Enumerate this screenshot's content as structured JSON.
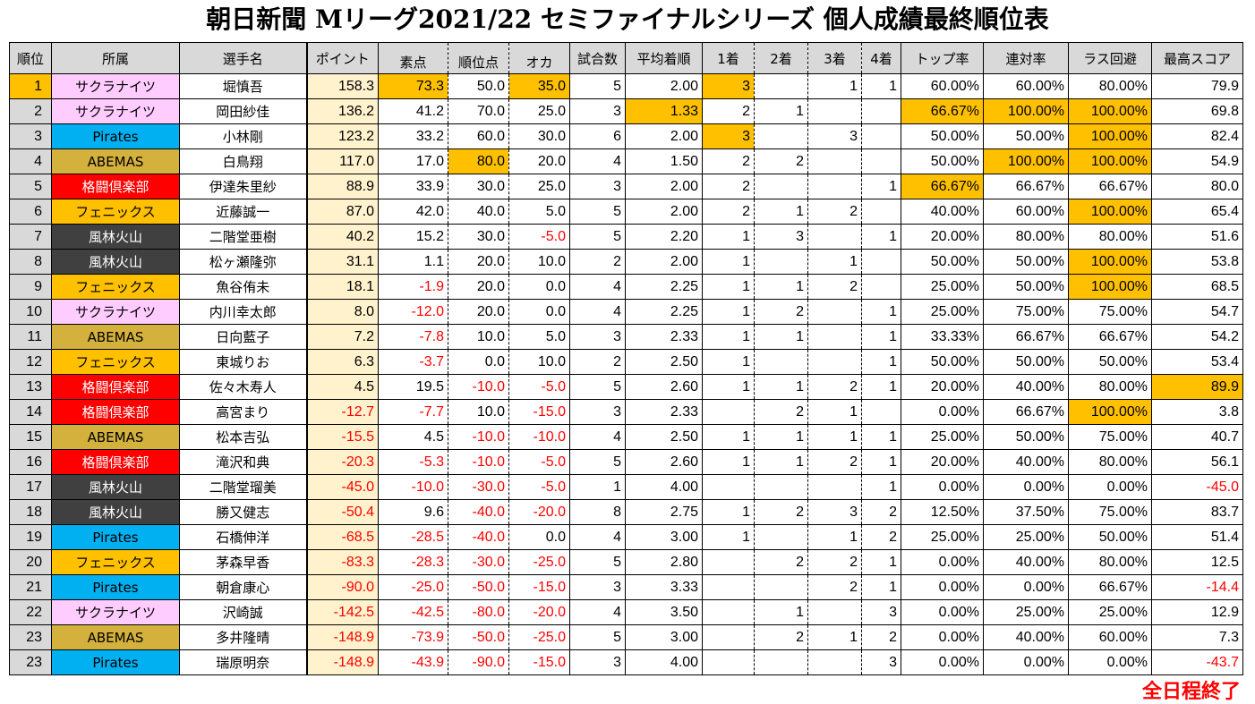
{
  "title": "朝日新聞 Mリーグ2021/22 セミファイナルシリーズ 個人成績最終順位表",
  "footer_note": "全日程終了",
  "colors": {
    "highlight": "#ffc000",
    "point_bg": "#fff2cc",
    "header_bg": "#d9d9d9",
    "negative": "#ff0000",
    "teams": {
      "サクラナイツ": {
        "bg": "#ffccff",
        "fg": "#000000"
      },
      "Pirates": {
        "bg": "#00b0f0",
        "fg": "#000000"
      },
      "ABEMAS": {
        "bg": "#d4b13c",
        "fg": "#000000"
      },
      "格闘倶楽部": {
        "bg": "#ff0000",
        "fg": "#ffffff"
      },
      "フェニックス": {
        "bg": "#ffc000",
        "fg": "#000000"
      },
      "風林火山": {
        "bg": "#404040",
        "fg": "#ffffff"
      }
    }
  },
  "headers": {
    "rank": "順位",
    "team": "所属",
    "player": "選手名",
    "points": "ポイント",
    "raw": "素点",
    "placement": "順位点",
    "oka": "オカ",
    "games": "試合数",
    "avg_place": "平均着順",
    "first": "1着",
    "second": "2着",
    "third": "3着",
    "fourth": "4着",
    "top_rate": "トップ率",
    "rentai_rate": "連対率",
    "last_avoid": "ラス回避",
    "high_score": "最高スコア"
  },
  "rows": [
    {
      "rank": "1",
      "team": "サクラナイツ",
      "player": "堀慎吾",
      "points": "158.3",
      "raw": "73.3",
      "placement": "50.0",
      "oka": "35.0",
      "games": "5",
      "avg": "2.00",
      "p1": "3",
      "p2": "",
      "p3": "1",
      "p4": "1",
      "top": "60.00%",
      "rentai": "60.00%",
      "avoid": "80.00%",
      "high": "79.9",
      "hl": [
        "rank",
        "raw",
        "oka",
        "p1"
      ]
    },
    {
      "rank": "2",
      "team": "サクラナイツ",
      "player": "岡田紗佳",
      "points": "136.2",
      "raw": "41.2",
      "placement": "70.0",
      "oka": "25.0",
      "games": "3",
      "avg": "1.33",
      "p1": "2",
      "p2": "1",
      "p3": "",
      "p4": "",
      "top": "66.67%",
      "rentai": "100.00%",
      "avoid": "100.00%",
      "high": "69.8",
      "hl": [
        "avg",
        "top",
        "rentai",
        "avoid"
      ]
    },
    {
      "rank": "3",
      "team": "Pirates",
      "player": "小林剛",
      "points": "123.2",
      "raw": "33.2",
      "placement": "60.0",
      "oka": "30.0",
      "games": "6",
      "avg": "2.00",
      "p1": "3",
      "p2": "",
      "p3": "3",
      "p4": "",
      "top": "50.00%",
      "rentai": "50.00%",
      "avoid": "100.00%",
      "high": "82.4",
      "hl": [
        "p1",
        "avoid"
      ]
    },
    {
      "rank": "4",
      "team": "ABEMAS",
      "player": "白鳥翔",
      "points": "117.0",
      "raw": "17.0",
      "placement": "80.0",
      "oka": "20.0",
      "games": "4",
      "avg": "1.50",
      "p1": "2",
      "p2": "2",
      "p3": "",
      "p4": "",
      "top": "50.00%",
      "rentai": "100.00%",
      "avoid": "100.00%",
      "high": "54.9",
      "hl": [
        "placement",
        "rentai",
        "avoid"
      ]
    },
    {
      "rank": "5",
      "team": "格闘倶楽部",
      "player": "伊達朱里紗",
      "points": "88.9",
      "raw": "33.9",
      "placement": "30.0",
      "oka": "25.0",
      "games": "3",
      "avg": "2.00",
      "p1": "2",
      "p2": "",
      "p3": "",
      "p4": "1",
      "top": "66.67%",
      "rentai": "66.67%",
      "avoid": "66.67%",
      "high": "80.0",
      "hl": [
        "top"
      ]
    },
    {
      "rank": "6",
      "team": "フェニックス",
      "player": "近藤誠一",
      "points": "87.0",
      "raw": "42.0",
      "placement": "40.0",
      "oka": "5.0",
      "games": "5",
      "avg": "2.00",
      "p1": "2",
      "p2": "1",
      "p3": "2",
      "p4": "",
      "top": "40.00%",
      "rentai": "60.00%",
      "avoid": "100.00%",
      "high": "65.4",
      "hl": [
        "avoid"
      ]
    },
    {
      "rank": "7",
      "team": "風林火山",
      "player": "二階堂亜樹",
      "points": "40.2",
      "raw": "15.2",
      "placement": "30.0",
      "oka": "-5.0",
      "games": "5",
      "avg": "2.20",
      "p1": "1",
      "p2": "3",
      "p3": "",
      "p4": "1",
      "top": "20.00%",
      "rentai": "80.00%",
      "avoid": "80.00%",
      "high": "51.6",
      "hl": []
    },
    {
      "rank": "8",
      "team": "風林火山",
      "player": "松ヶ瀬隆弥",
      "points": "31.1",
      "raw": "1.1",
      "placement": "20.0",
      "oka": "10.0",
      "games": "2",
      "avg": "2.00",
      "p1": "1",
      "p2": "",
      "p3": "1",
      "p4": "",
      "top": "50.00%",
      "rentai": "50.00%",
      "avoid": "100.00%",
      "high": "53.8",
      "hl": [
        "avoid"
      ]
    },
    {
      "rank": "9",
      "team": "フェニックス",
      "player": "魚谷侑未",
      "points": "18.1",
      "raw": "-1.9",
      "placement": "20.0",
      "oka": "0.0",
      "games": "4",
      "avg": "2.25",
      "p1": "1",
      "p2": "1",
      "p3": "2",
      "p4": "",
      "top": "25.00%",
      "rentai": "50.00%",
      "avoid": "100.00%",
      "high": "68.5",
      "hl": [
        "avoid"
      ]
    },
    {
      "rank": "10",
      "team": "サクラナイツ",
      "player": "内川幸太郎",
      "points": "8.0",
      "raw": "-12.0",
      "placement": "20.0",
      "oka": "0.0",
      "games": "4",
      "avg": "2.25",
      "p1": "1",
      "p2": "2",
      "p3": "",
      "p4": "1",
      "top": "25.00%",
      "rentai": "75.00%",
      "avoid": "75.00%",
      "high": "54.7",
      "hl": []
    },
    {
      "rank": "11",
      "team": "ABEMAS",
      "player": "日向藍子",
      "points": "7.2",
      "raw": "-7.8",
      "placement": "10.0",
      "oka": "5.0",
      "games": "3",
      "avg": "2.33",
      "p1": "1",
      "p2": "1",
      "p3": "",
      "p4": "1",
      "top": "33.33%",
      "rentai": "66.67%",
      "avoid": "66.67%",
      "high": "54.2",
      "hl": []
    },
    {
      "rank": "12",
      "team": "フェニックス",
      "player": "東城りお",
      "points": "6.3",
      "raw": "-3.7",
      "placement": "0.0",
      "oka": "10.0",
      "games": "2",
      "avg": "2.50",
      "p1": "1",
      "p2": "",
      "p3": "",
      "p4": "1",
      "top": "50.00%",
      "rentai": "50.00%",
      "avoid": "50.00%",
      "high": "53.4",
      "hl": []
    },
    {
      "rank": "13",
      "team": "格闘倶楽部",
      "player": "佐々木寿人",
      "points": "4.5",
      "raw": "19.5",
      "placement": "-10.0",
      "oka": "-5.0",
      "games": "5",
      "avg": "2.60",
      "p1": "1",
      "p2": "1",
      "p3": "2",
      "p4": "1",
      "top": "20.00%",
      "rentai": "40.00%",
      "avoid": "80.00%",
      "high": "89.9",
      "hl": [
        "high"
      ]
    },
    {
      "rank": "14",
      "team": "格闘倶楽部",
      "player": "高宮まり",
      "points": "-12.7",
      "raw": "-7.7",
      "placement": "10.0",
      "oka": "-15.0",
      "games": "3",
      "avg": "2.33",
      "p1": "",
      "p2": "2",
      "p3": "1",
      "p4": "",
      "top": "0.00%",
      "rentai": "66.67%",
      "avoid": "100.00%",
      "high": "3.8",
      "hl": [
        "avoid"
      ]
    },
    {
      "rank": "15",
      "team": "ABEMAS",
      "player": "松本吉弘",
      "points": "-15.5",
      "raw": "4.5",
      "placement": "-10.0",
      "oka": "-10.0",
      "games": "4",
      "avg": "2.50",
      "p1": "1",
      "p2": "1",
      "p3": "1",
      "p4": "1",
      "top": "25.00%",
      "rentai": "50.00%",
      "avoid": "75.00%",
      "high": "40.7",
      "hl": []
    },
    {
      "rank": "16",
      "team": "格闘倶楽部",
      "player": "滝沢和典",
      "points": "-20.3",
      "raw": "-5.3",
      "placement": "-10.0",
      "oka": "-5.0",
      "games": "5",
      "avg": "2.60",
      "p1": "1",
      "p2": "1",
      "p3": "2",
      "p4": "1",
      "top": "20.00%",
      "rentai": "40.00%",
      "avoid": "80.00%",
      "high": "56.1",
      "hl": []
    },
    {
      "rank": "17",
      "team": "風林火山",
      "player": "二階堂瑠美",
      "points": "-45.0",
      "raw": "-10.0",
      "placement": "-30.0",
      "oka": "-5.0",
      "games": "1",
      "avg": "4.00",
      "p1": "",
      "p2": "",
      "p3": "",
      "p4": "1",
      "top": "0.00%",
      "rentai": "0.00%",
      "avoid": "0.00%",
      "high": "-45.0",
      "hl": []
    },
    {
      "rank": "18",
      "team": "風林火山",
      "player": "勝又健志",
      "points": "-50.4",
      "raw": "9.6",
      "placement": "-40.0",
      "oka": "-20.0",
      "games": "8",
      "avg": "2.75",
      "p1": "1",
      "p2": "2",
      "p3": "3",
      "p4": "2",
      "top": "12.50%",
      "rentai": "37.50%",
      "avoid": "75.00%",
      "high": "83.7",
      "hl": []
    },
    {
      "rank": "19",
      "team": "Pirates",
      "player": "石橋伸洋",
      "points": "-68.5",
      "raw": "-28.5",
      "placement": "-40.0",
      "oka": "0.0",
      "games": "4",
      "avg": "3.00",
      "p1": "1",
      "p2": "",
      "p3": "1",
      "p4": "2",
      "top": "25.00%",
      "rentai": "25.00%",
      "avoid": "50.00%",
      "high": "51.4",
      "hl": []
    },
    {
      "rank": "20",
      "team": "フェニックス",
      "player": "茅森早香",
      "points": "-83.3",
      "raw": "-28.3",
      "placement": "-30.0",
      "oka": "-25.0",
      "games": "5",
      "avg": "2.80",
      "p1": "",
      "p2": "2",
      "p3": "2",
      "p4": "1",
      "top": "0.00%",
      "rentai": "40.00%",
      "avoid": "80.00%",
      "high": "12.5",
      "hl": []
    },
    {
      "rank": "21",
      "team": "Pirates",
      "player": "朝倉康心",
      "points": "-90.0",
      "raw": "-25.0",
      "placement": "-50.0",
      "oka": "-15.0",
      "games": "3",
      "avg": "3.33",
      "p1": "",
      "p2": "",
      "p3": "2",
      "p4": "1",
      "top": "0.00%",
      "rentai": "0.00%",
      "avoid": "66.67%",
      "high": "-14.4",
      "hl": []
    },
    {
      "rank": "22",
      "team": "サクラナイツ",
      "player": "沢崎誠",
      "points": "-142.5",
      "raw": "-42.5",
      "placement": "-80.0",
      "oka": "-20.0",
      "games": "4",
      "avg": "3.50",
      "p1": "",
      "p2": "1",
      "p3": "",
      "p4": "3",
      "top": "0.00%",
      "rentai": "25.00%",
      "avoid": "25.00%",
      "high": "12.9",
      "hl": []
    },
    {
      "rank": "23",
      "team": "ABEMAS",
      "player": "多井隆晴",
      "points": "-148.9",
      "raw": "-73.9",
      "placement": "-50.0",
      "oka": "-25.0",
      "games": "5",
      "avg": "3.00",
      "p1": "",
      "p2": "2",
      "p3": "1",
      "p4": "2",
      "top": "0.00%",
      "rentai": "40.00%",
      "avoid": "60.00%",
      "high": "7.3",
      "hl": []
    },
    {
      "rank": "23",
      "team": "Pirates",
      "player": "瑞原明奈",
      "points": "-148.9",
      "raw": "-43.9",
      "placement": "-90.0",
      "oka": "-15.0",
      "games": "3",
      "avg": "4.00",
      "p1": "",
      "p2": "",
      "p3": "",
      "p4": "3",
      "top": "0.00%",
      "rentai": "0.00%",
      "avoid": "0.00%",
      "high": "-43.7",
      "hl": []
    }
  ]
}
